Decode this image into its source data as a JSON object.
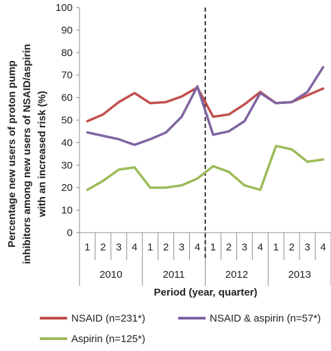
{
  "chart_data": {
    "type": "line",
    "title": "",
    "ylabel_lines": [
      "Percentage new users of proton pump",
      "inhibitors among new users of NSAID/aspirin",
      "with an increased risk (%)"
    ],
    "xlabel": "Period (year, quarter)",
    "ylim": [
      0,
      100
    ],
    "yticks": [
      0,
      10,
      20,
      30,
      40,
      50,
      60,
      70,
      80,
      90,
      100
    ],
    "grid": false,
    "quarters": [
      "1",
      "2",
      "3",
      "4",
      "1",
      "2",
      "3",
      "4",
      "1",
      "2",
      "3",
      "4",
      "1",
      "2",
      "3",
      "4"
    ],
    "years": [
      "2010",
      "2011",
      "2012",
      "2013"
    ],
    "divider_after_index": 7,
    "series": [
      {
        "name": "NSAID (n=231*)",
        "color": "#c0504d",
        "values": [
          49.5,
          52.5,
          58,
          62,
          57.5,
          58,
          60.5,
          64.5,
          51.5,
          52.5,
          57,
          62.5,
          57.5,
          58,
          61,
          64
        ]
      },
      {
        "name": "NSAID & aspirin (n=57*)",
        "color": "#8064a2",
        "values": [
          44.5,
          43,
          41.5,
          39,
          41.5,
          44.5,
          51.5,
          65,
          43.5,
          45,
          49.5,
          62,
          57.5,
          58,
          62.5,
          73.5
        ]
      },
      {
        "name": "Aspirin (n=125*)",
        "color": "#9bbb59",
        "values": [
          19,
          23,
          28,
          29,
          20,
          20,
          21,
          24,
          29.5,
          27,
          21,
          19,
          38.5,
          37,
          31.5,
          32.5
        ]
      }
    ],
    "legend_position": "bottom"
  }
}
